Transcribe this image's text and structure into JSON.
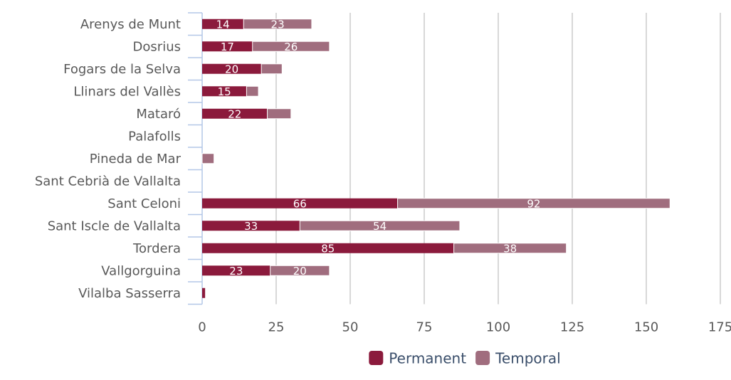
{
  "chart_data": {
    "type": "bar",
    "orientation": "horizontal",
    "stacked": true,
    "categories": [
      "Arenys de Munt",
      "Dosrius",
      "Fogars de la Selva",
      "Llinars del Vallès",
      "Mataró",
      "Palafolls",
      "Pineda de Mar",
      "Sant Cebrià de Vallalta",
      "Sant Celoni",
      "Sant Iscle de Vallalta",
      "Tordera",
      "Vallgorguina",
      "Vilalba Sasserra"
    ],
    "series": [
      {
        "name": "Permanent",
        "color": "#8b1a3c",
        "values": [
          14,
          17,
          20,
          15,
          22,
          0,
          0,
          0,
          66,
          33,
          85,
          23,
          1
        ],
        "labels": [
          "14",
          "17",
          "20",
          "15",
          "22",
          "",
          "",
          "",
          "66",
          "33",
          "85",
          "23",
          ""
        ]
      },
      {
        "name": "Temporal",
        "color": "#a06d7e",
        "values": [
          23,
          26,
          7,
          4,
          8,
          0,
          4,
          0,
          92,
          54,
          38,
          20,
          0
        ],
        "labels": [
          "23",
          "26",
          "",
          "",
          "",
          "",
          "",
          "",
          "92",
          "54",
          "38",
          "20",
          ""
        ]
      }
    ],
    "xlim": [
      0,
      175
    ],
    "xticks": [
      0,
      25,
      50,
      75,
      100,
      125,
      150,
      175
    ],
    "xtick_labels": [
      "0",
      "25",
      "50",
      "75",
      "100",
      "125",
      "150",
      "175"
    ],
    "grid": true,
    "legend_position": "bottom",
    "title": "",
    "xlabel": "",
    "ylabel": ""
  }
}
